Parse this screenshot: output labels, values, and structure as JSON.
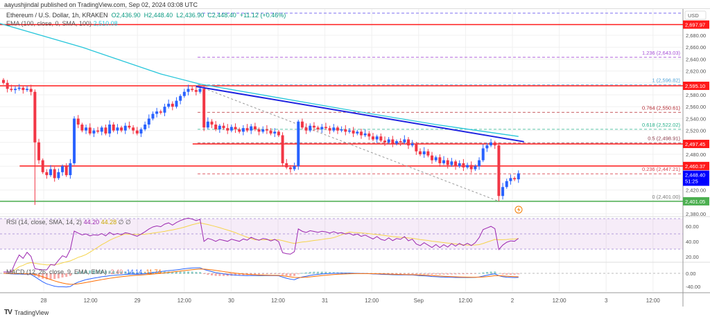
{
  "header": {
    "published": "aayushjindal published on TradingView.com, Sep 02, 2024 03:08 UTC"
  },
  "legend": {
    "symbol": "Ethereum / U.S. Dollar, 1h, KRAKEN",
    "o": "O2,436.90",
    "h": "H2,448.40",
    "l": "L2,436.90",
    "c": "C2,448.40",
    "chg": "+11.12 (+0.46%)",
    "ema_label": "EMA (100, close, 0, SMA, 100)",
    "ema_value": "2,510.08"
  },
  "rsi": {
    "label": "RSI (14, close, SMA, 14, 2)",
    "v1": "44.20",
    "v2": "44.28",
    "v3": "∅ ∅",
    "ticks": [
      "60.00",
      "40.00",
      "20.00"
    ]
  },
  "macd": {
    "label": "MACD (12, 26, close, 9, EMA, EMA)",
    "v1": "-2.40",
    "v2": "-14.14",
    "v3": "-11.74",
    "ticks": [
      "0.00",
      "-40.00"
    ]
  },
  "footer": {
    "brand": "TradingView"
  },
  "colors": {
    "up": "#2962ff",
    "down": "#f23645",
    "ema": "#26c6da",
    "trend": "#1e22e0",
    "red": "#ff1a1a",
    "green": "#4caf50"
  },
  "chart_data": {
    "type": "candlestick",
    "currency": "USD",
    "yticks": [
      2680,
      2660,
      2640,
      2620,
      2600,
      2580,
      2560,
      2540,
      2520,
      2500,
      2480,
      2460,
      2440,
      2420,
      2400,
      2380
    ],
    "ylim": [
      2380,
      2700
    ],
    "xticks": [
      "28",
      "12:00",
      "29",
      "12:00",
      "30",
      "12:00",
      "31",
      "12:00",
      "Sep",
      "12:00",
      "2",
      "12:00",
      "3",
      "12:00"
    ],
    "closes": [
      2600,
      2590,
      2588,
      2590,
      2592,
      2588,
      2590,
      2585,
      2500,
      2470,
      2450,
      2445,
      2455,
      2440,
      2450,
      2460,
      2445,
      2465,
      2540,
      2530,
      2520,
      2525,
      2515,
      2520,
      2518,
      2525,
      2515,
      2530,
      2520,
      2525,
      2520,
      2528,
      2525,
      2520,
      2515,
      2522,
      2530,
      2540,
      2548,
      2552,
      2550,
      2560,
      2565,
      2560,
      2570,
      2578,
      2585,
      2590,
      2588,
      2585,
      2590,
      2525,
      2535,
      2530,
      2522,
      2528,
      2524,
      2520,
      2526,
      2522,
      2518,
      2524,
      2520,
      2527,
      2522,
      2518,
      2522,
      2520,
      2515,
      2518,
      2512,
      2465,
      2458,
      2455,
      2460,
      2535,
      2525,
      2520,
      2528,
      2525,
      2522,
      2526,
      2524,
      2520,
      2525,
      2520,
      2522,
      2518,
      2520,
      2515,
      2518,
      2512,
      2515,
      2510,
      2505,
      2510,
      2503,
      2500,
      2505,
      2498,
      2502,
      2500,
      2505,
      2495,
      2498,
      2485,
      2480,
      2485,
      2478,
      2470,
      2475,
      2465,
      2470,
      2462,
      2468,
      2460,
      2465,
      2458,
      2462,
      2455,
      2460,
      2470,
      2490,
      2495,
      2500,
      2495,
      2410,
      2425,
      2435,
      2440,
      2438,
      2448
    ],
    "special_lows": [
      [
        8,
        2395
      ],
      [
        126,
        2401
      ]
    ],
    "ema100_points": [
      [
        -2,
        2702
      ],
      [
        20,
        2660
      ],
      [
        40,
        2615
      ],
      [
        50,
        2598
      ],
      [
        70,
        2575
      ],
      [
        90,
        2552
      ],
      [
        110,
        2530
      ],
      [
        131,
        2510
      ]
    ],
    "hlines": [
      {
        "price": 2697.97,
        "label": "2,697.97",
        "color": "#ff1a1a",
        "from": 0
      },
      {
        "price": 2595.1,
        "label": "2,595.10",
        "color": "#ff1a1a",
        "from": 0
      },
      {
        "price": 2497.45,
        "label": "2,497.45",
        "color": "#ff1a1a",
        "from": 49
      },
      {
        "price": 2460.37,
        "label": "2,460.37",
        "color": "#ff1a1a",
        "from": 5
      },
      {
        "price": 2401.05,
        "label": "2,401.05",
        "color": "#4caf50",
        "from": 0
      }
    ],
    "fib": [
      {
        "level": "1.236",
        "price": 2643.03,
        "text": "1.236 (2,643.03)",
        "color": "#a64ed6"
      },
      {
        "level": "1",
        "price": 2596.82,
        "text": "1 (2,596.82)",
        "color": "#4fa3d9"
      },
      {
        "level": "0.764",
        "price": 2550.61,
        "text": "0.764 (2,550.61)",
        "color": "#b3262f"
      },
      {
        "level": "0.618",
        "price": 2522.02,
        "text": "0.618 (2,522.02)",
        "color": "#26b08a"
      },
      {
        "level": "0.5",
        "price": 2498.91,
        "text": "0.5 (2,498.91)",
        "color": "#8b3a4a"
      },
      {
        "level": "0.236",
        "price": 2447.21,
        "text": "0.236 (2,447.21)",
        "color": "#d9454f"
      },
      {
        "level": "0",
        "price": 2401.0,
        "text": "0 (2,401.00)",
        "color": "#777777"
      }
    ],
    "trendline": [
      [
        49,
        2594
      ],
      [
        131,
        2500
      ]
    ],
    "fib_diagonal": [
      [
        49,
        2596
      ],
      [
        126,
        2401
      ]
    ],
    "last_price": {
      "label": "2,448.40",
      "countdown": "51:25"
    }
  }
}
